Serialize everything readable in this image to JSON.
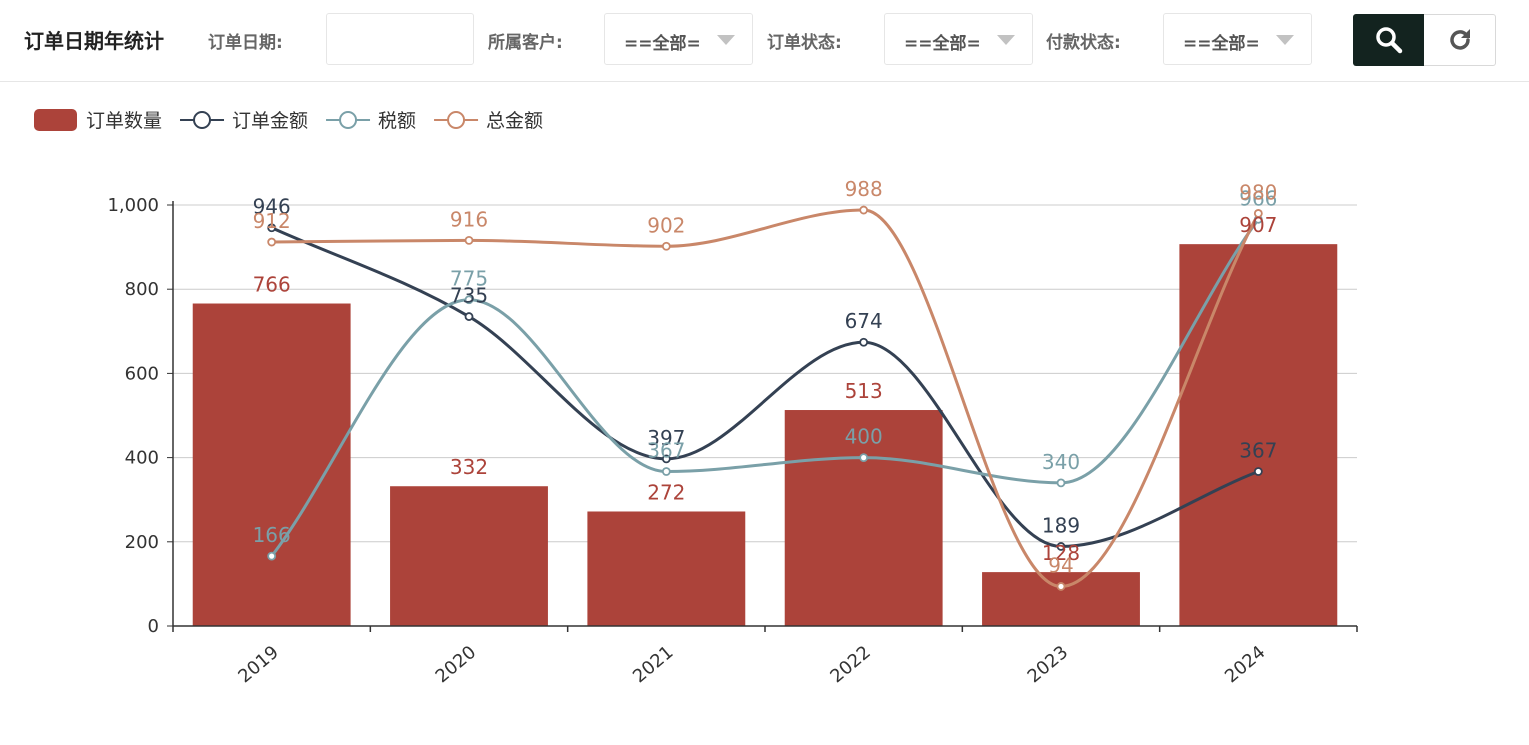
{
  "toolbar": {
    "title": "订单日期年统计",
    "order_date_label": "订单日期:",
    "order_date_value": "",
    "customer_label": "所属客户:",
    "customer_value": "==全部=",
    "order_status_label": "订单状态:",
    "order_status_value": "==全部=",
    "payment_status_label": "付款状态:",
    "payment_status_value": "==全部=",
    "search_icon": "search-icon",
    "refresh_icon": "refresh-icon"
  },
  "colors": {
    "bar": "#ac433a",
    "order_amount": "#344153",
    "tax": "#7aa0a8",
    "total": "#c98769",
    "search_button": "#13231f"
  },
  "chart_data": {
    "type": "bar+line",
    "categories": [
      "2019",
      "2020",
      "2021",
      "2022",
      "2023",
      "2024"
    ],
    "ylim": [
      0,
      1000
    ],
    "yticks": [
      0,
      200,
      400,
      600,
      800,
      1000
    ],
    "ytick_labels": [
      "0",
      "200",
      "400",
      "600",
      "800",
      "1,000"
    ],
    "series": [
      {
        "name": "订单数量",
        "kind": "bar",
        "color": "#ac433a",
        "values": [
          766,
          332,
          272,
          513,
          128,
          907
        ]
      },
      {
        "name": "订单金额",
        "kind": "line",
        "color": "#344153",
        "values": [
          946,
          735,
          397,
          674,
          189,
          367
        ]
      },
      {
        "name": "税额",
        "kind": "line",
        "color": "#7aa0a8",
        "values": [
          166,
          775,
          367,
          400,
          340,
          966
        ]
      },
      {
        "name": "总金额",
        "kind": "line",
        "color": "#c98769",
        "values": [
          912,
          916,
          902,
          988,
          94,
          980
        ]
      }
    ]
  }
}
